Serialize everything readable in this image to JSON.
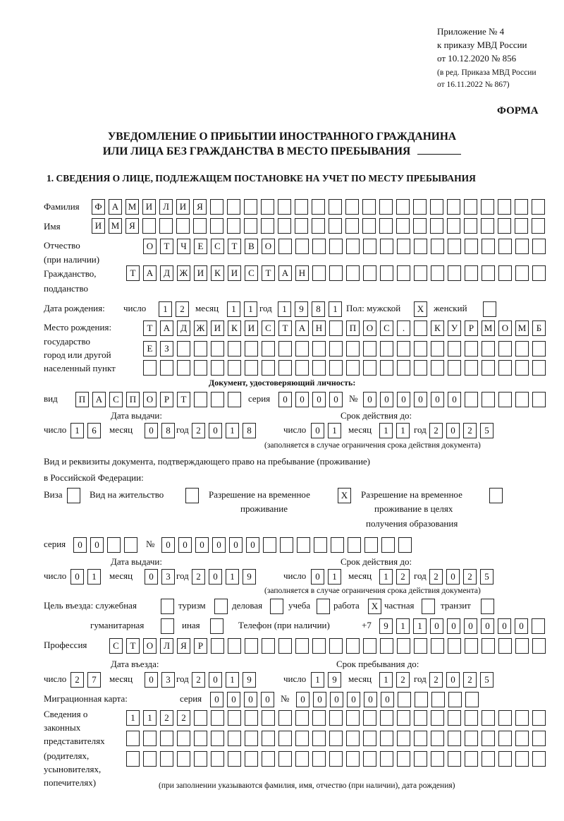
{
  "header": {
    "appendix": [
      "Приложение № 4",
      "к приказу МВД России",
      "от 10.12.2020 № 856",
      "(в ред. Приказа МВД России",
      "от 16.11.2022 № 867)"
    ],
    "form_label": "ФОРМА",
    "title_line1": "УВЕДОМЛЕНИЕ О ПРИБЫТИИ ИНОСТРАННОГО ГРАЖДАНИНА",
    "title_line2": "ИЛИ ЛИЦА БЕЗ ГРАЖДАНСТВА В МЕСТО ПРЕБЫВАНИЯ",
    "section1": "1. СВЕДЕНИЯ О ЛИЦЕ, ПОДЛЕЖАЩЕМ ПОСТАНОВКЕ НА УЧЕТ ПО МЕСТУ ПРЕБЫВАНИЯ"
  },
  "labels": {
    "surname": "Фамилия",
    "name": "Имя",
    "patronymic_1": "Отчество",
    "patronymic_2": "(при наличии)",
    "citizenship_1": "Гражданство,",
    "citizenship_2": "подданство",
    "dob": "Дата рождения:",
    "day": "число",
    "month": "месяц",
    "year": "год",
    "sex": "Пол: мужской",
    "female": "женский",
    "birthplace_1": "Место рождения:",
    "birthplace_2": "государство",
    "birthplace_3": "город или другой",
    "birthplace_4": "населенный пункт",
    "id_doc_heading": "Документ, удостоверяющий личность:",
    "kind": "вид",
    "series": "серия",
    "number": "№",
    "issue_date": "Дата выдачи:",
    "valid_until": "Срок действия до:",
    "validity_note": "(заполняется в случае ограничения срока действия документа)",
    "stay_doc_1": "Вид и реквизиты документа, подтверждающего право на пребывание (проживание)",
    "stay_doc_2": "в Российской Федерации:",
    "visa": "Виза",
    "residence_permit": "Вид на жительство",
    "temp_residence_1": "Разрешение на временное",
    "temp_residence_2": "проживание",
    "temp_edu_1": "Разрешение на временное",
    "temp_edu_2": "проживание в целях",
    "temp_edu_3": "получения образования",
    "purpose": "Цель въезда: служебная",
    "tourism": "туризм",
    "business": "деловая",
    "study": "учеба",
    "work": "работа",
    "private": "частная",
    "transit": "транзит",
    "humanitarian": "гуманитарная",
    "other": "иная",
    "phone": "Телефон (при наличии)",
    "phone_prefix": "+7",
    "profession": "Профессия",
    "entry_date": "Дата въезда:",
    "stay_until": "Срок пребывания до:",
    "migration_card": "Миграционная карта:",
    "reps_1": "Сведения о",
    "reps_2": "законных",
    "reps_3": "представителях",
    "reps_4": "(родителях,",
    "reps_5": "усыновителях,",
    "reps_6": "попечителях)",
    "reps_note": "(при заполнении указываются фамилия, имя, отчество (при наличии), дата рождения)"
  },
  "fields": {
    "surname": "ФАМИЛИЯ",
    "name": "ИМЯ",
    "patronymic": "ОТЧЕСТВО",
    "citizenship": "ТАДЖИКИСТАН",
    "dob_day": "12",
    "dob_month": "11",
    "dob_year": "1981",
    "sex_male": "X",
    "sex_female": "",
    "birthplace_1": "ТАДЖИКИСТАН ПОС. КУРМОМБ",
    "birthplace_2": "ЕЗ",
    "birthplace_3": "",
    "id_kind": "ПАСПОРТ",
    "id_series": "0000",
    "id_number": "000000",
    "id_issue_day": "16",
    "id_issue_month": "08",
    "id_issue_year": "2018",
    "id_valid_day": "01",
    "id_valid_month": "11",
    "id_valid_year": "2025",
    "visa": "",
    "residence_permit": "",
    "temp_residence": "X",
    "temp_edu": "",
    "stay_series": "00",
    "stay_number": "000000",
    "stay_issue_day": "01",
    "stay_issue_month": "03",
    "stay_issue_year": "2019",
    "stay_valid_day": "01",
    "stay_valid_month": "12",
    "stay_valid_year": "2025",
    "purpose_official": "",
    "purpose_tourism": "",
    "purpose_business": "",
    "purpose_study": "",
    "purpose_work": "X",
    "purpose_private": "",
    "purpose_transit": "",
    "purpose_humanitarian": "",
    "purpose_other": "",
    "phone": "911000000",
    "profession": "СТОЛЯР",
    "entry_day": "27",
    "entry_month": "03",
    "entry_year": "2019",
    "stay_until_day": "19",
    "stay_until_month": "12",
    "stay_until_year": "2025",
    "mc_series": "0000",
    "mc_number": "000000",
    "reps_1": "1122",
    "reps_2": "",
    "reps_3": ""
  }
}
